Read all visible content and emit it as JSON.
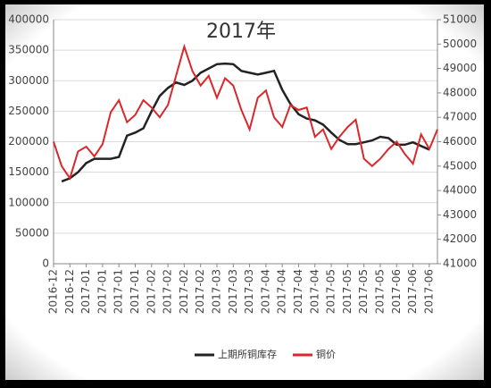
{
  "chart_data": {
    "type": "line",
    "title": "2017年",
    "categories": [
      "2016-12",
      null,
      "2016-12",
      null,
      "2017-01",
      null,
      "2017-01",
      null,
      "2017-01",
      null,
      "2017-01",
      null,
      "2017-02",
      null,
      "2017-02",
      null,
      "2017-02",
      null,
      "2017-02",
      null,
      "2017-03",
      null,
      "2017-03",
      null,
      "2017-03",
      null,
      "2017-04",
      null,
      "2017-04",
      null,
      "2017-04",
      null,
      "2017-04",
      null,
      "2017-05",
      null,
      "2017-05",
      null,
      "2017-05",
      null,
      "2017-05",
      null,
      "2017-06",
      null,
      "2017-06",
      null,
      "2017-06",
      null
    ],
    "series": [
      {
        "name": "上期所铜库存",
        "color": "#222222",
        "values": [
          null,
          135000,
          140000,
          150000,
          165000,
          172000,
          172000,
          172000,
          175000,
          210000,
          215000,
          222000,
          250000,
          275000,
          288000,
          297000,
          293000,
          300000,
          313000,
          320000,
          327000,
          328000,
          327000,
          316000,
          313000,
          310000,
          313000,
          316000,
          285000,
          262000,
          245000,
          238000,
          235000,
          228000,
          215000,
          203000,
          196000,
          196000,
          199000,
          202000,
          208000,
          206000,
          195000,
          195000,
          199000,
          193000,
          187000,
          null
        ]
      },
      {
        "name": "铜价",
        "color": "#d9282b",
        "axis": "y2",
        "values": [
          46000,
          45000,
          44500,
          45600,
          45800,
          45400,
          45900,
          47200,
          47700,
          46800,
          47100,
          47700,
          47400,
          47000,
          47500,
          48700,
          49900,
          48900,
          48300,
          48700,
          47800,
          48600,
          48300,
          47300,
          46500,
          47800,
          48100,
          47000,
          46600,
          47500,
          47300,
          47400,
          46200,
          46500,
          45700,
          46200,
          46600,
          46900,
          45300,
          45000,
          45300,
          45700,
          46000,
          45500,
          45100,
          46300,
          45700,
          46500
        ]
      }
    ],
    "ylim": [
      0,
      400000
    ],
    "yticks": [
      0,
      50000,
      100000,
      150000,
      200000,
      250000,
      300000,
      350000,
      400000
    ],
    "y2lim": [
      41000,
      51000
    ],
    "y2ticks": [
      41000,
      42000,
      43000,
      44000,
      45000,
      46000,
      47000,
      48000,
      49000,
      50000,
      51000
    ],
    "grid": true,
    "legend": "bottom"
  }
}
